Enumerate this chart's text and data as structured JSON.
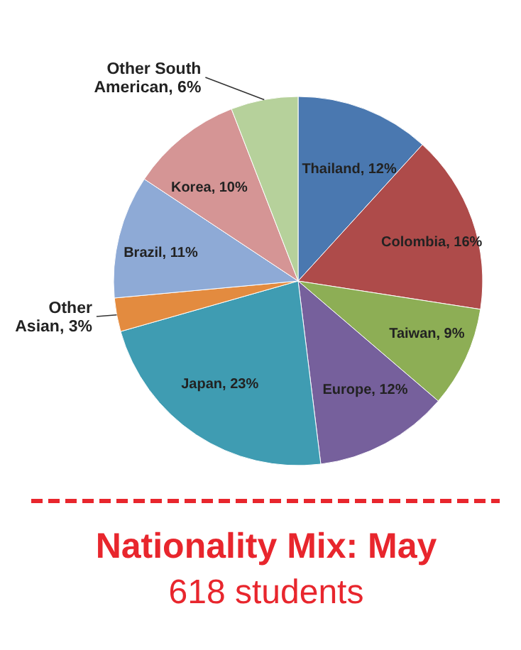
{
  "chart_data": {
    "type": "pie",
    "title": "Nationality Mix: May",
    "subtitle": "618 students",
    "categories": [
      "Thailand",
      "Colombia",
      "Taiwan",
      "Europe",
      "Japan",
      "Other Asian",
      "Brazil",
      "Korea",
      "Other South American"
    ],
    "values": [
      12,
      16,
      9,
      12,
      23,
      3,
      11,
      10,
      6
    ],
    "value_labels": [
      "12%",
      "16%",
      "9%",
      "12%",
      "23%",
      "3%",
      "11%",
      "10%",
      "6%"
    ],
    "colors": [
      "#4a78b0",
      "#ae4b4a",
      "#8dae55",
      "#76609c",
      "#3f9cb2",
      "#e38b3f",
      "#8eaad6",
      "#d59595",
      "#b6d19b"
    ],
    "legend": false
  }
}
